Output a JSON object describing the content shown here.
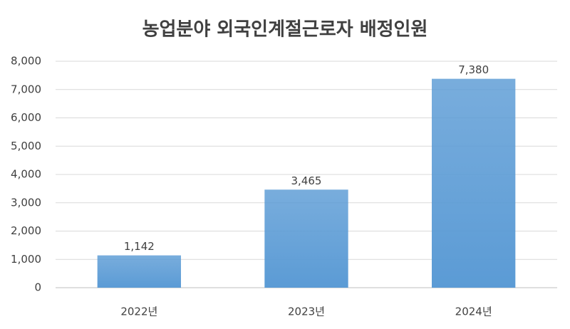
{
  "chart_data": {
    "type": "bar",
    "title": "농업분야 외국인계절근로자 배정인원",
    "categories": [
      "2022년",
      "2023년",
      "2024년"
    ],
    "values": [
      1142,
      3465,
      7380
    ],
    "value_labels": [
      "1,142",
      "3,465",
      "7,380"
    ],
    "color": "#5b9bd5",
    "ylim": [
      0,
      8000
    ],
    "yticks": [
      0,
      {
        "value": 1000,
        "label": "1,000"
      },
      {
        "value": 2000,
        "label": "2,000"
      },
      {
        "value": 3000,
        "label": "3,000"
      },
      {
        "value": 4000,
        "label": "4,000"
      },
      {
        "value": 5000,
        "label": "5,000"
      },
      {
        "value": 6000,
        "label": "6,000"
      },
      {
        "value": 7000,
        "label": "7,000"
      },
      {
        "value": 8000,
        "label": "8,000"
      }
    ],
    "grid": true
  }
}
